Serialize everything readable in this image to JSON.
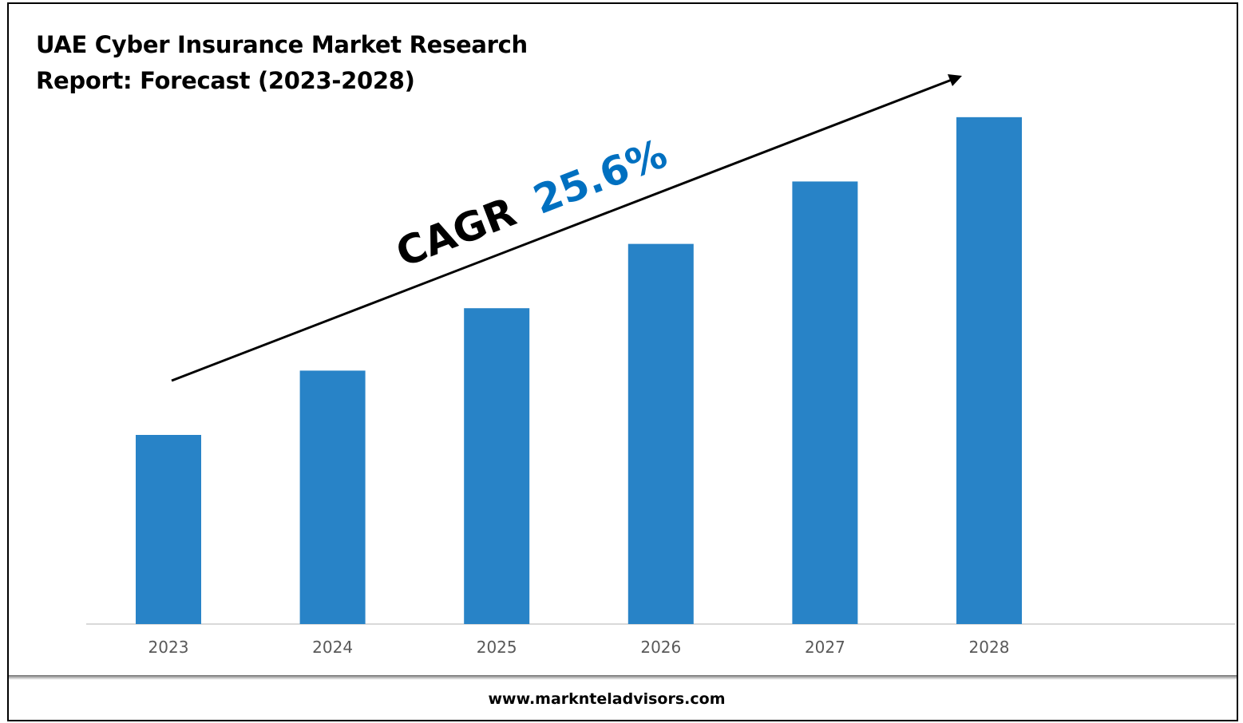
{
  "title_lines": [
    "UAE Cyber Insurance Market Research",
    "Report: Forecast (2023-2028)"
  ],
  "footer": "www.marknteladvisors.com",
  "annotation": {
    "label": "CAGR",
    "value": "25.6%",
    "value_color": "#0070c0"
  },
  "chart_data": {
    "type": "bar",
    "title": "UAE Cyber Insurance Market Research Report: Forecast (2023-2028)",
    "categories": [
      "2023",
      "2024",
      "2025",
      "2026",
      "2027",
      "2028"
    ],
    "values": [
      1.0,
      1.34,
      1.67,
      2.01,
      2.34,
      2.68
    ],
    "value_note": "relative scale, no axis values shown",
    "xlabel": "",
    "ylabel": "",
    "ylim": [
      0,
      2.9
    ],
    "grid": false,
    "bar_color": "#2883c7",
    "annotation": "CAGR 25.6%"
  }
}
